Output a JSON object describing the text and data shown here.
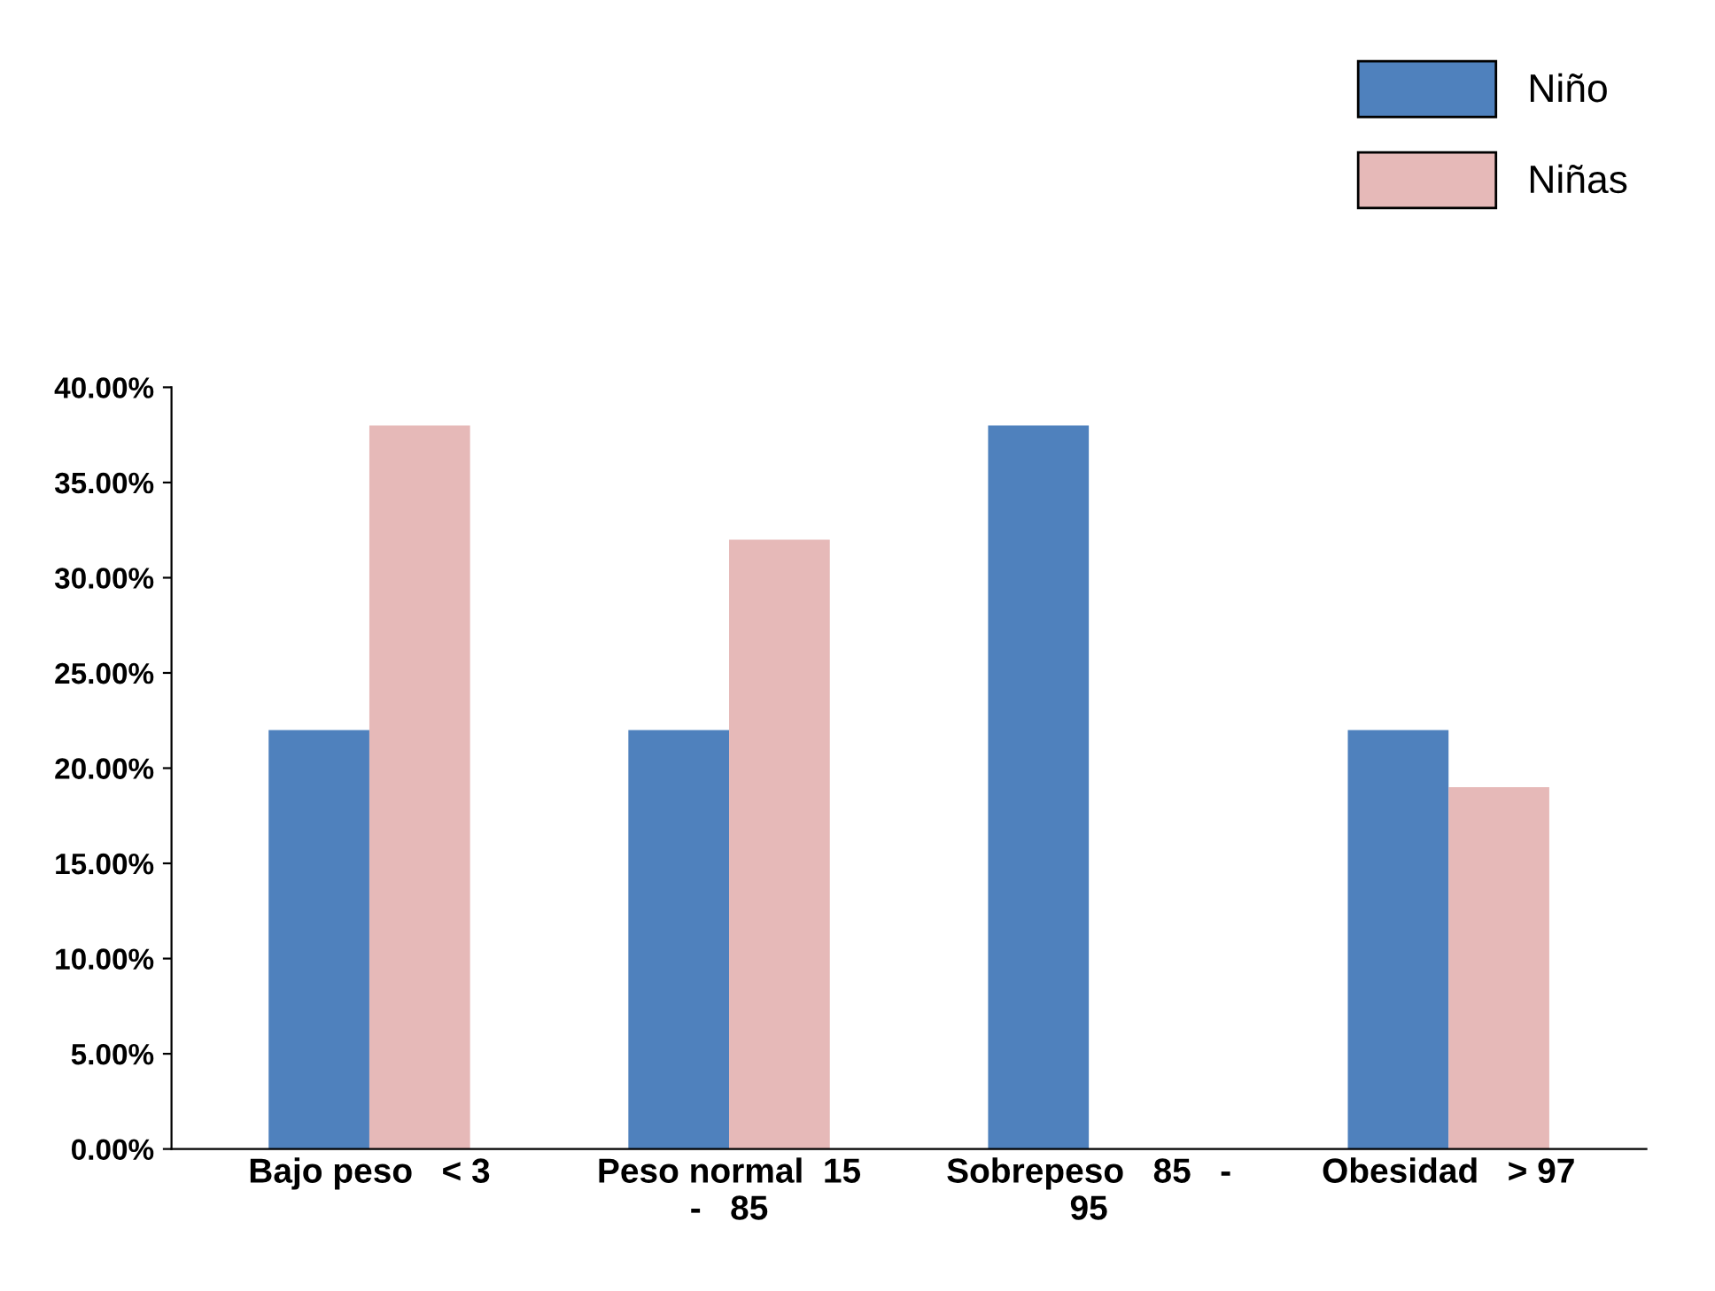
{
  "chart_data": {
    "type": "bar",
    "categories": [
      "Bajo peso   < 3",
      "Peso normal  15\n-   85",
      "Sobrepeso   85   -\n95",
      "Obesidad   > 97"
    ],
    "series": [
      {
        "name": "Niño",
        "color": "#4f81bd",
        "values": [
          22,
          22,
          38,
          22
        ]
      },
      {
        "name": "Niñas",
        "color": "#e6b9b8",
        "values": [
          38,
          32,
          0,
          19
        ]
      }
    ],
    "ylim": [
      0,
      40
    ],
    "yticks": [
      {
        "value": 0,
        "label": "0.00%"
      },
      {
        "value": 5,
        "label": "5.00%"
      },
      {
        "value": 10,
        "label": "10.00%"
      },
      {
        "value": 15,
        "label": "15.00%"
      },
      {
        "value": 20,
        "label": "20.00%"
      },
      {
        "value": 25,
        "label": "25.00%"
      },
      {
        "value": 30,
        "label": "30.00%"
      },
      {
        "value": 35,
        "label": "35.00%"
      },
      {
        "value": 40,
        "label": "40.00%"
      }
    ],
    "grid": false,
    "legend": "top right"
  }
}
